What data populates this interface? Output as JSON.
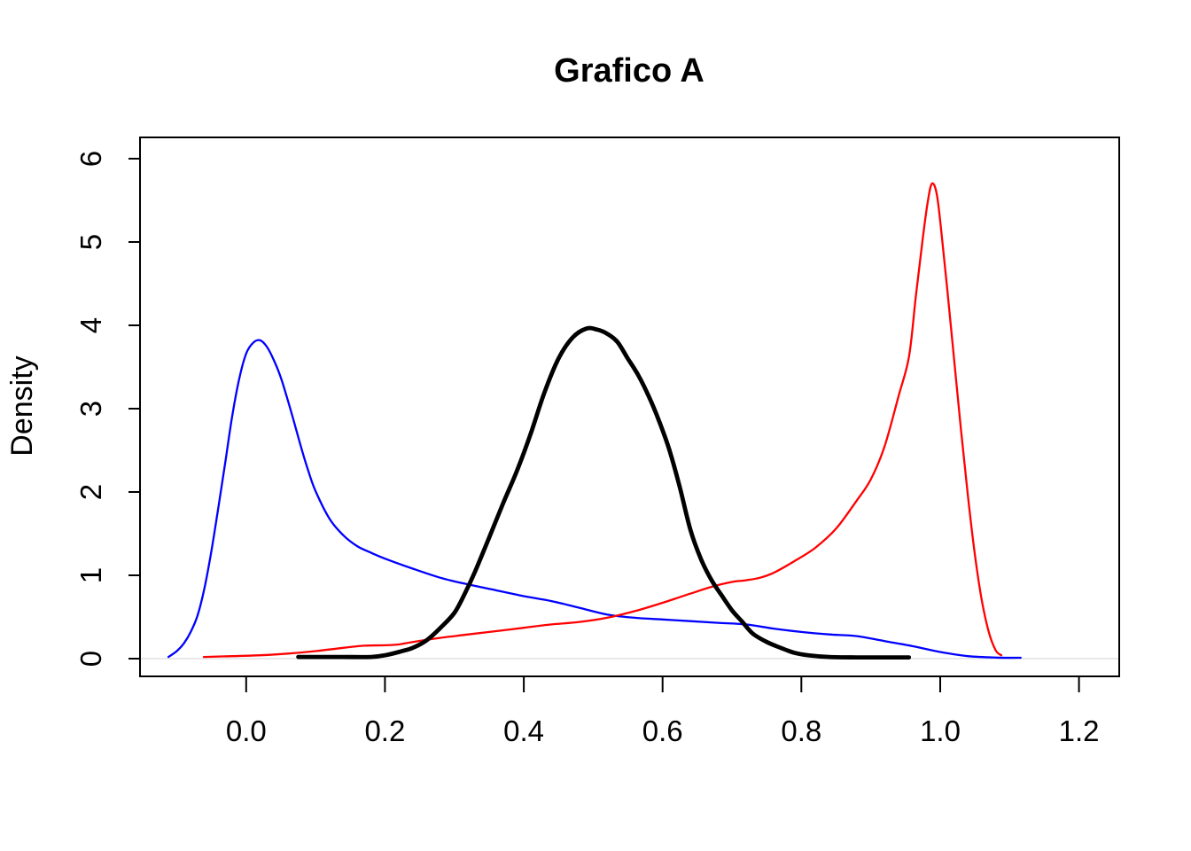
{
  "chart_data": {
    "type": "line",
    "title": "Grafico A",
    "xlabel": "",
    "ylabel": "Density",
    "grid": false,
    "legend": null,
    "xlim": [
      -0.153,
      1.258
    ],
    "ylim": [
      -0.213,
      6.255
    ],
    "x_ticks": [
      0.0,
      0.2,
      0.4,
      0.6,
      0.8,
      1.0,
      1.2
    ],
    "x_tick_labels": [
      "0.0",
      "0.2",
      "0.4",
      "0.6",
      "0.8",
      "1.0",
      "1.2"
    ],
    "y_ticks": [
      0,
      1,
      2,
      3,
      4,
      5,
      6
    ],
    "y_tick_labels": [
      "0",
      "1",
      "2",
      "3",
      "4",
      "5",
      "6"
    ],
    "zero_line": {
      "y": 0,
      "color": "#e9e9e9"
    },
    "series": [
      {
        "id": "blue",
        "name": "blue-density",
        "color": "#0000FF",
        "width": 2.3,
        "peak": {
          "x": 0.02,
          "y": 3.82
        },
        "points": [
          [
            -0.112,
            0.02
          ],
          [
            -0.1,
            0.09
          ],
          [
            -0.09,
            0.18
          ],
          [
            -0.08,
            0.32
          ],
          [
            -0.07,
            0.52
          ],
          [
            -0.06,
            0.85
          ],
          [
            -0.05,
            1.3
          ],
          [
            -0.04,
            1.82
          ],
          [
            -0.03,
            2.36
          ],
          [
            -0.02,
            2.92
          ],
          [
            -0.01,
            3.36
          ],
          [
            0.0,
            3.66
          ],
          [
            0.01,
            3.79
          ],
          [
            0.02,
            3.82
          ],
          [
            0.03,
            3.74
          ],
          [
            0.04,
            3.58
          ],
          [
            0.05,
            3.37
          ],
          [
            0.06,
            3.1
          ],
          [
            0.07,
            2.81
          ],
          [
            0.08,
            2.51
          ],
          [
            0.09,
            2.24
          ],
          [
            0.1,
            2.01
          ],
          [
            0.12,
            1.68
          ],
          [
            0.14,
            1.48
          ],
          [
            0.16,
            1.35
          ],
          [
            0.18,
            1.27
          ],
          [
            0.2,
            1.2
          ],
          [
            0.24,
            1.08
          ],
          [
            0.28,
            0.97
          ],
          [
            0.32,
            0.89
          ],
          [
            0.36,
            0.82
          ],
          [
            0.4,
            0.75
          ],
          [
            0.44,
            0.69
          ],
          [
            0.48,
            0.61
          ],
          [
            0.52,
            0.53
          ],
          [
            0.56,
            0.49
          ],
          [
            0.6,
            0.47
          ],
          [
            0.64,
            0.45
          ],
          [
            0.68,
            0.43
          ],
          [
            0.72,
            0.41
          ],
          [
            0.76,
            0.36
          ],
          [
            0.8,
            0.32
          ],
          [
            0.84,
            0.29
          ],
          [
            0.88,
            0.27
          ],
          [
            0.92,
            0.21
          ],
          [
            0.96,
            0.15
          ],
          [
            1.0,
            0.08
          ],
          [
            1.04,
            0.03
          ],
          [
            1.08,
            0.012
          ],
          [
            1.116,
            0.01
          ]
        ]
      },
      {
        "id": "red",
        "name": "red-density",
        "color": "#FF0000",
        "width": 2.3,
        "peak": {
          "x": 0.988,
          "y": 5.7
        },
        "points": [
          [
            -0.061,
            0.02
          ],
          [
            -0.02,
            0.03
          ],
          [
            0.02,
            0.04
          ],
          [
            0.06,
            0.06
          ],
          [
            0.1,
            0.09
          ],
          [
            0.14,
            0.13
          ],
          [
            0.17,
            0.155
          ],
          [
            0.2,
            0.16
          ],
          [
            0.22,
            0.17
          ],
          [
            0.24,
            0.2
          ],
          [
            0.28,
            0.25
          ],
          [
            0.32,
            0.29
          ],
          [
            0.36,
            0.33
          ],
          [
            0.4,
            0.37
          ],
          [
            0.44,
            0.41
          ],
          [
            0.48,
            0.44
          ],
          [
            0.52,
            0.49
          ],
          [
            0.56,
            0.57
          ],
          [
            0.6,
            0.67
          ],
          [
            0.64,
            0.78
          ],
          [
            0.67,
            0.86
          ],
          [
            0.7,
            0.92
          ],
          [
            0.72,
            0.94
          ],
          [
            0.74,
            0.97
          ],
          [
            0.76,
            1.03
          ],
          [
            0.79,
            1.17
          ],
          [
            0.82,
            1.33
          ],
          [
            0.85,
            1.56
          ],
          [
            0.88,
            1.9
          ],
          [
            0.9,
            2.15
          ],
          [
            0.92,
            2.55
          ],
          [
            0.94,
            3.15
          ],
          [
            0.955,
            3.62
          ],
          [
            0.965,
            4.35
          ],
          [
            0.975,
            5.05
          ],
          [
            0.982,
            5.48
          ],
          [
            0.988,
            5.7
          ],
          [
            0.995,
            5.58
          ],
          [
            1.002,
            5.1
          ],
          [
            1.01,
            4.45
          ],
          [
            1.02,
            3.6
          ],
          [
            1.03,
            2.75
          ],
          [
            1.04,
            1.95
          ],
          [
            1.05,
            1.25
          ],
          [
            1.06,
            0.7
          ],
          [
            1.07,
            0.32
          ],
          [
            1.08,
            0.1
          ],
          [
            1.088,
            0.04
          ]
        ]
      },
      {
        "id": "black",
        "name": "black-density",
        "color": "#000000",
        "width": 4.8,
        "peak": {
          "x": 0.5,
          "y": 3.97
        },
        "points": [
          [
            0.075,
            0.02
          ],
          [
            0.1,
            0.02
          ],
          [
            0.14,
            0.02
          ],
          [
            0.18,
            0.02
          ],
          [
            0.2,
            0.04
          ],
          [
            0.22,
            0.08
          ],
          [
            0.24,
            0.13
          ],
          [
            0.26,
            0.22
          ],
          [
            0.28,
            0.37
          ],
          [
            0.3,
            0.55
          ],
          [
            0.315,
            0.78
          ],
          [
            0.33,
            1.05
          ],
          [
            0.35,
            1.45
          ],
          [
            0.37,
            1.86
          ],
          [
            0.39,
            2.25
          ],
          [
            0.41,
            2.7
          ],
          [
            0.43,
            3.2
          ],
          [
            0.45,
            3.6
          ],
          [
            0.47,
            3.85
          ],
          [
            0.49,
            3.96
          ],
          [
            0.505,
            3.95
          ],
          [
            0.52,
            3.9
          ],
          [
            0.535,
            3.8
          ],
          [
            0.55,
            3.6
          ],
          [
            0.565,
            3.4
          ],
          [
            0.58,
            3.15
          ],
          [
            0.595,
            2.85
          ],
          [
            0.61,
            2.5
          ],
          [
            0.625,
            2.05
          ],
          [
            0.64,
            1.55
          ],
          [
            0.655,
            1.2
          ],
          [
            0.67,
            0.95
          ],
          [
            0.685,
            0.76
          ],
          [
            0.7,
            0.58
          ],
          [
            0.715,
            0.44
          ],
          [
            0.73,
            0.3
          ],
          [
            0.75,
            0.2
          ],
          [
            0.77,
            0.13
          ],
          [
            0.79,
            0.07
          ],
          [
            0.81,
            0.04
          ],
          [
            0.84,
            0.02
          ],
          [
            0.88,
            0.015
          ],
          [
            0.92,
            0.015
          ],
          [
            0.955,
            0.015
          ]
        ]
      }
    ]
  }
}
